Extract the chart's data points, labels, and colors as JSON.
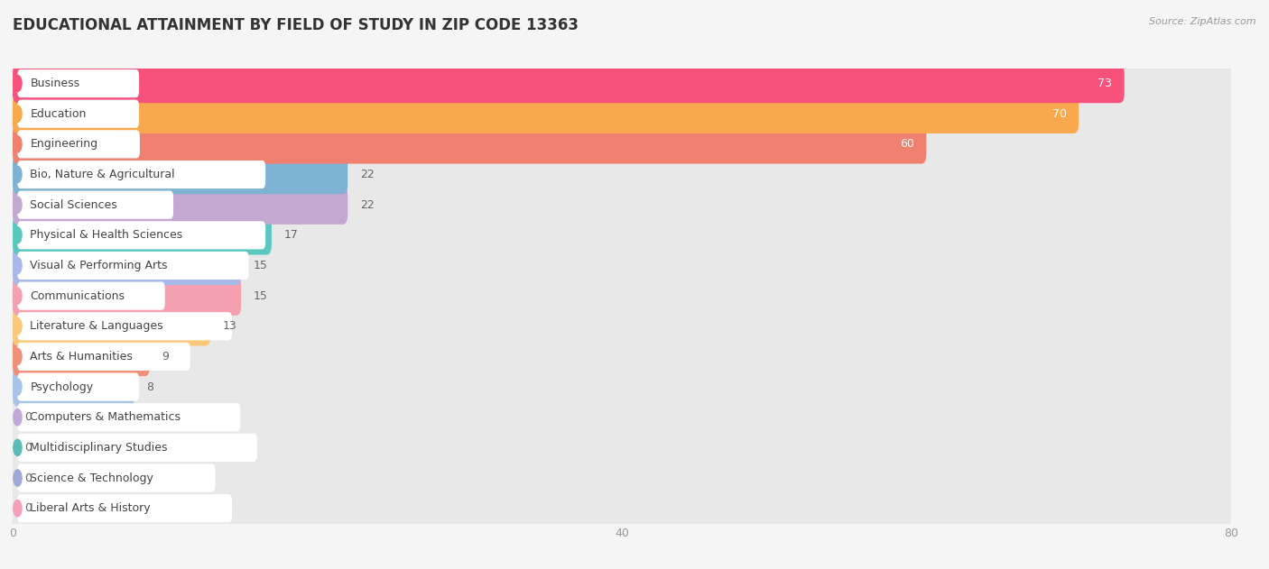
{
  "title": "EDUCATIONAL ATTAINMENT BY FIELD OF STUDY IN ZIP CODE 13363",
  "source": "Source: ZipAtlas.com",
  "categories": [
    "Business",
    "Education",
    "Engineering",
    "Bio, Nature & Agricultural",
    "Social Sciences",
    "Physical & Health Sciences",
    "Visual & Performing Arts",
    "Communications",
    "Literature & Languages",
    "Arts & Humanities",
    "Psychology",
    "Computers & Mathematics",
    "Multidisciplinary Studies",
    "Science & Technology",
    "Liberal Arts & History"
  ],
  "values": [
    73,
    70,
    60,
    22,
    22,
    17,
    15,
    15,
    13,
    9,
    8,
    0,
    0,
    0,
    0
  ],
  "colors": [
    "#F7527B",
    "#F9A84D",
    "#F08070",
    "#7FB3D3",
    "#C3A8D1",
    "#5BC8C0",
    "#A8B8E8",
    "#F4A0B0",
    "#F9C87A",
    "#F0907A",
    "#A8C4E8",
    "#C0A8D8",
    "#5ABCB8",
    "#A0A8D8",
    "#F4A0B8"
  ],
  "xlim": [
    0,
    80
  ],
  "xticks": [
    0,
    40,
    80
  ],
  "background_color": "#f5f5f5",
  "row_bg_color": "#ebebeb",
  "title_fontsize": 12,
  "label_fontsize": 9,
  "value_fontsize": 9,
  "grid_color": "#d8d8d8"
}
